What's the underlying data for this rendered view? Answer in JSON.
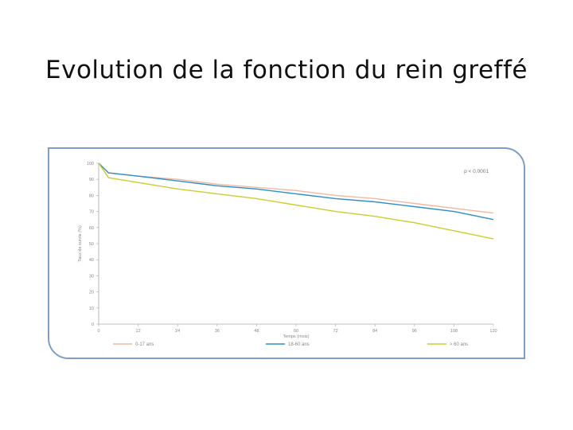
{
  "slide": {
    "title": "Evolution de la fonction du rein greffé"
  },
  "chart_data": {
    "type": "line",
    "title": "",
    "xlabel": "Temps (mois)",
    "ylabel": "Taux de survie (%)",
    "xlim": [
      0,
      120
    ],
    "ylim": [
      0,
      100
    ],
    "x_ticks": [
      0,
      12,
      24,
      36,
      48,
      60,
      72,
      84,
      96,
      108,
      120
    ],
    "y_ticks": [
      0,
      10,
      20,
      30,
      40,
      50,
      60,
      70,
      80,
      90,
      100
    ],
    "grid": false,
    "legend_position": "bottom",
    "annotation": "p < 0.0001",
    "colors": {
      "series_0_17": "#f2b8a0",
      "series_18_60": "#2b8fcb",
      "series_60_plus": "#c9cf2a",
      "axis": "#aaaaaa",
      "frame": "#7f9ec6"
    },
    "series": [
      {
        "name": "0-17 ans",
        "color": "#f2b8a0",
        "x": [
          0,
          3,
          12,
          24,
          36,
          48,
          60,
          72,
          84,
          96,
          108,
          120
        ],
        "y": [
          100,
          94,
          92,
          90,
          87,
          85,
          83,
          80,
          78,
          75,
          72,
          69
        ]
      },
      {
        "name": "18-60 ans",
        "color": "#2b8fcb",
        "x": [
          0,
          3,
          12,
          24,
          36,
          48,
          60,
          72,
          84,
          96,
          108,
          120
        ],
        "y": [
          100,
          94,
          92,
          89,
          86,
          84,
          81,
          78,
          76,
          73,
          70,
          65
        ]
      },
      {
        "name": "> 60 ans",
        "color": "#c9cf2a",
        "x": [
          0,
          3,
          12,
          24,
          36,
          48,
          60,
          72,
          84,
          96,
          108,
          120
        ],
        "y": [
          100,
          91,
          88,
          84,
          81,
          78,
          74,
          70,
          67,
          63,
          58,
          53
        ]
      }
    ]
  }
}
